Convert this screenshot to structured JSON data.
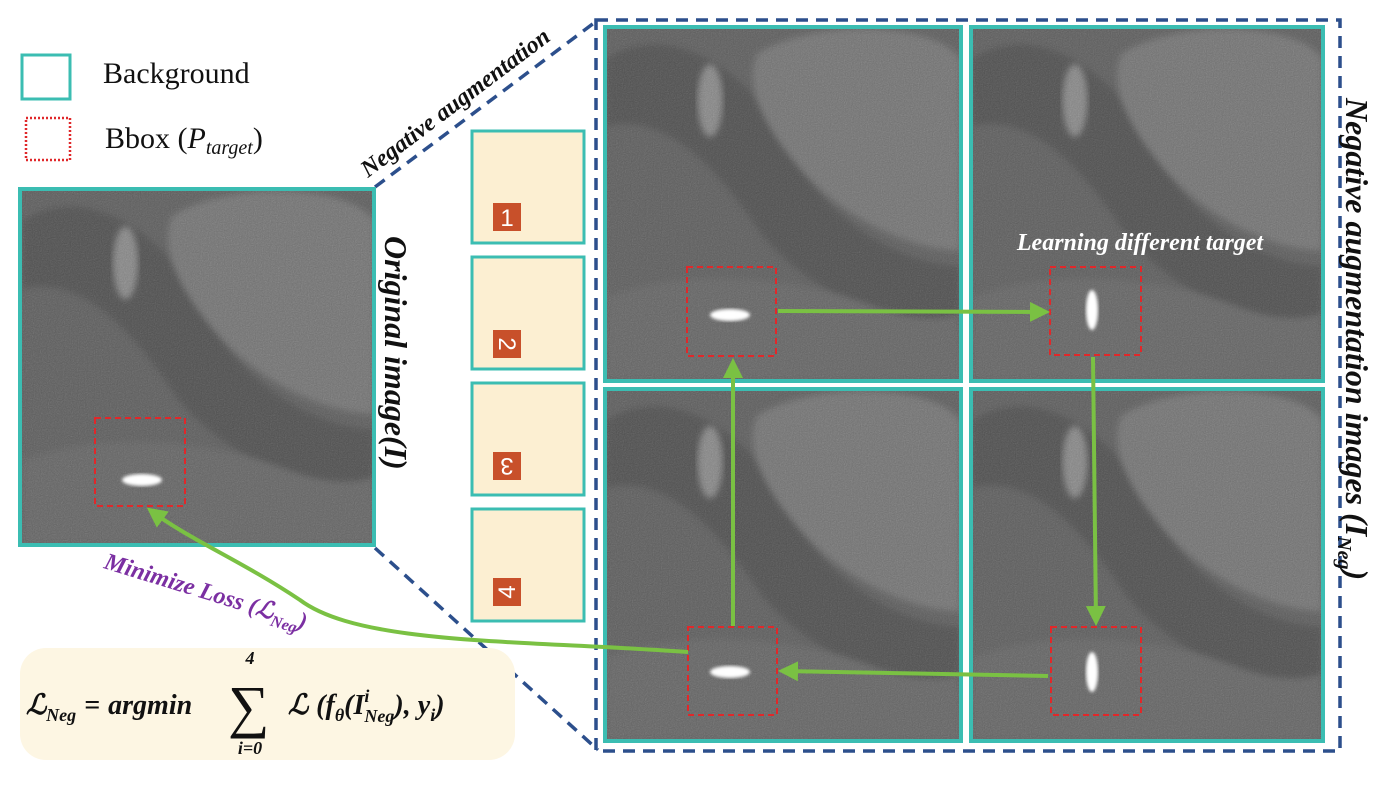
{
  "legend": {
    "background_label": "Background",
    "bbox_label": "Bbox (",
    "bbox_symbol": "P",
    "bbox_subscript": "target",
    "bbox_close": ")"
  },
  "labels": {
    "negative_augmentation": "Negative augmentation",
    "original_image": "Original image(I)",
    "negative_images_main": "Negative augmentation images (",
    "negative_images_symbol": "I",
    "negative_images_sub": "Neg",
    "negative_images_close": ")",
    "learning_target": "Learning different target",
    "minimize_loss": "Minimize Loss (",
    "minimize_loss_symbol": "ℒ",
    "minimize_loss_sub": "Neg",
    "minimize_loss_close": ")"
  },
  "formula": {
    "lhs": "ℒ",
    "lhs_sub": "Neg",
    "eq": "=",
    "argmin": "argmin",
    "sum": "∑",
    "upper": "4",
    "lower": "i=0",
    "loss": "ℒ",
    "f": "(f",
    "theta": "θ",
    "open": "(I",
    "sup_i": "i",
    "sub_neg": "Neg",
    "rest": "), y",
    "y_sub": "i",
    "end": ")"
  },
  "steps": [
    "1",
    "2",
    "3",
    "4"
  ],
  "colors": {
    "teal": "#3bbdb2",
    "navy": "#2c4f8c",
    "green": "#7ac143",
    "red_dash": "#e0282a",
    "step_fill": "#fcefd2",
    "step_badge": "#c8502a",
    "purple": "#7b2fa2",
    "formula_bg": "#fdf6e3"
  }
}
